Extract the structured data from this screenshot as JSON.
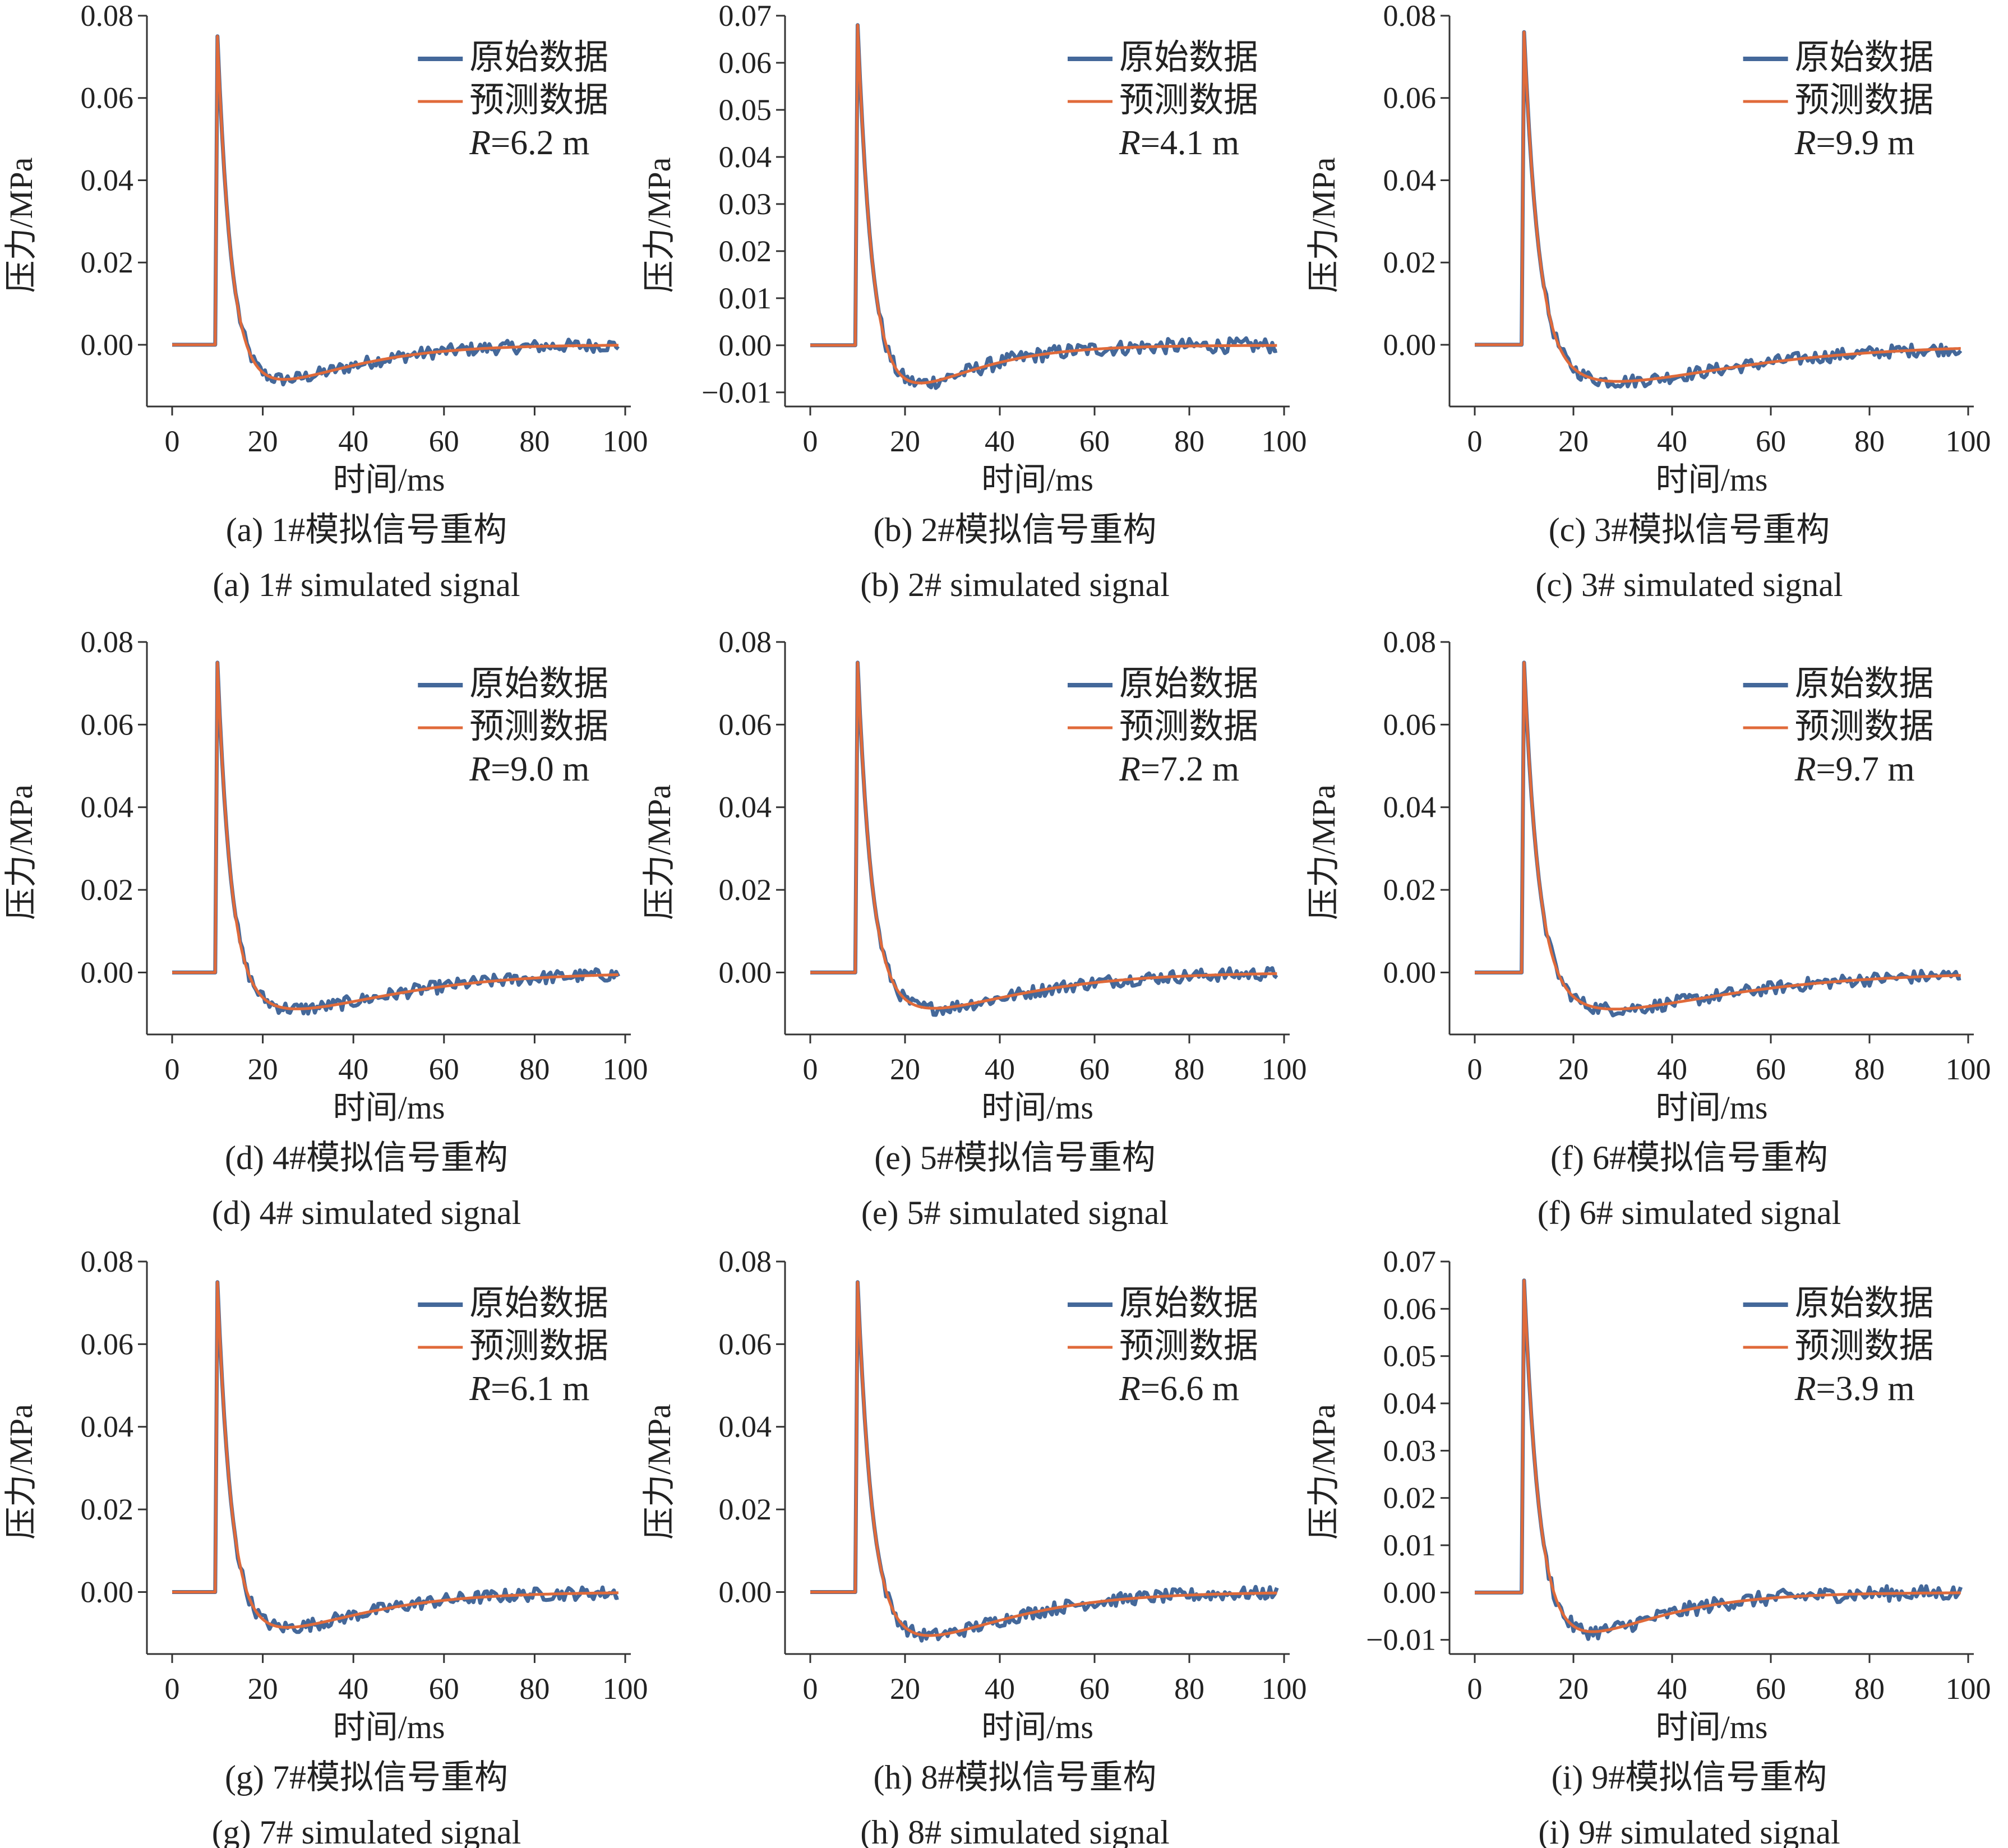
{
  "colors": {
    "original": "#44689A",
    "predicted": "#E06A3A",
    "axis": "#333333"
  },
  "chart_data": [
    {
      "type": "line",
      "xlabel": "时间/ms",
      "ylabel": "压力/MPa",
      "xlim": [
        0,
        100
      ],
      "ylim": [
        -0.015,
        0.08
      ],
      "x_ticks": [
        "0",
        "20",
        "40",
        "60",
        "80",
        "100"
      ],
      "y_ticks": [
        "0.00",
        "0.02",
        "0.04",
        "0.06",
        "0.08"
      ],
      "series": [
        {
          "name": "原始数据"
        },
        {
          "name": "预测数据"
        }
      ],
      "annotation": "=6.2 m",
      "r_symbol": "R",
      "peak": 0.075,
      "neg_min": -0.009,
      "neg_time": 22,
      "caption_cn": "(a) 1#模拟信号重构",
      "caption_en": "(a) 1# simulated signal"
    },
    {
      "type": "line",
      "xlabel": "时间/ms",
      "ylabel": "压力/MPa",
      "xlim": [
        0,
        100
      ],
      "ylim": [
        -0.013,
        0.07
      ],
      "x_ticks": [
        "0",
        "20",
        "40",
        "60",
        "80",
        "100"
      ],
      "y_ticks": [
        "−0.01",
        "0.00",
        "0.01",
        "0.02",
        "0.03",
        "0.04",
        "0.05",
        "0.06",
        "0.07"
      ],
      "series": [
        {
          "name": "原始数据"
        },
        {
          "name": "预测数据"
        }
      ],
      "annotation": "=4.1 m",
      "r_symbol": "R",
      "peak": 0.068,
      "neg_min": -0.009,
      "neg_time": 20,
      "caption_cn": "(b) 2#模拟信号重构",
      "caption_en": "(b) 2# simulated signal"
    },
    {
      "type": "line",
      "xlabel": "时间/ms",
      "ylabel": "压力/MPa",
      "xlim": [
        0,
        100
      ],
      "ylim": [
        -0.015,
        0.08
      ],
      "x_ticks": [
        "0",
        "20",
        "40",
        "60",
        "80",
        "100"
      ],
      "y_ticks": [
        "0.00",
        "0.02",
        "0.04",
        "0.06",
        "0.08"
      ],
      "series": [
        {
          "name": "原始数据"
        },
        {
          "name": "预测数据"
        }
      ],
      "annotation": "=9.9 m",
      "r_symbol": "R",
      "peak": 0.076,
      "neg_min": -0.009,
      "neg_time": 28,
      "caption_cn": "(c) 3#模拟信号重构",
      "caption_en": "(c) 3# simulated signal"
    },
    {
      "type": "line",
      "xlabel": "时间/ms",
      "ylabel": "压力/MPa",
      "xlim": [
        0,
        100
      ],
      "ylim": [
        -0.015,
        0.08
      ],
      "x_ticks": [
        "0",
        "20",
        "40",
        "60",
        "80",
        "100"
      ],
      "y_ticks": [
        "0.00",
        "0.02",
        "0.04",
        "0.06",
        "0.08"
      ],
      "series": [
        {
          "name": "原始数据"
        },
        {
          "name": "预测数据"
        }
      ],
      "annotation": "=9.0 m",
      "r_symbol": "R",
      "peak": 0.075,
      "neg_min": -0.009,
      "neg_time": 26,
      "caption_cn": "(d) 4#模拟信号重构",
      "caption_en": "(d) 4# simulated signal"
    },
    {
      "type": "line",
      "xlabel": "时间/ms",
      "ylabel": "压力/MPa",
      "xlim": [
        0,
        100
      ],
      "ylim": [
        -0.015,
        0.08
      ],
      "x_ticks": [
        "0",
        "20",
        "40",
        "60",
        "80",
        "100"
      ],
      "y_ticks": [
        "0.00",
        "0.02",
        "0.04",
        "0.06",
        "0.08"
      ],
      "series": [
        {
          "name": "原始数据"
        },
        {
          "name": "预测数据"
        }
      ],
      "annotation": "=7.2 m",
      "r_symbol": "R",
      "peak": 0.075,
      "neg_min": -0.009,
      "neg_time": 24,
      "caption_cn": "(e) 5#模拟信号重构",
      "caption_en": "(e) 5# simulated signal"
    },
    {
      "type": "line",
      "xlabel": "时间/ms",
      "ylabel": "压力/MPa",
      "xlim": [
        0,
        100
      ],
      "ylim": [
        -0.015,
        0.08
      ],
      "x_ticks": [
        "0",
        "20",
        "40",
        "60",
        "80",
        "100"
      ],
      "y_ticks": [
        "0.00",
        "0.02",
        "0.04",
        "0.06",
        "0.08"
      ],
      "series": [
        {
          "name": "原始数据"
        },
        {
          "name": "预测数据"
        }
      ],
      "annotation": "=9.7 m",
      "r_symbol": "R",
      "peak": 0.075,
      "neg_min": -0.009,
      "neg_time": 27,
      "caption_cn": "(f) 6#模拟信号重构",
      "caption_en": "(f) 6# simulated signal"
    },
    {
      "type": "line",
      "xlabel": "时间/ms",
      "ylabel": "压力/MPa",
      "xlim": [
        0,
        100
      ],
      "ylim": [
        -0.015,
        0.08
      ],
      "x_ticks": [
        "0",
        "20",
        "40",
        "60",
        "80",
        "100"
      ],
      "y_ticks": [
        "0.00",
        "0.02",
        "0.04",
        "0.06",
        "0.08"
      ],
      "series": [
        {
          "name": "原始数据"
        },
        {
          "name": "预测数据"
        }
      ],
      "annotation": "=6.1 m",
      "r_symbol": "R",
      "peak": 0.075,
      "neg_min": -0.009,
      "neg_time": 23,
      "caption_cn": "(g) 7#模拟信号重构",
      "caption_en": "(g) 7# simulated signal"
    },
    {
      "type": "line",
      "xlabel": "时间/ms",
      "ylabel": "压力/MPa",
      "xlim": [
        0,
        100
      ],
      "ylim": [
        -0.015,
        0.08
      ],
      "x_ticks": [
        "0",
        "20",
        "40",
        "60",
        "80",
        "100"
      ],
      "y_ticks": [
        "0.00",
        "0.02",
        "0.04",
        "0.06",
        "0.08"
      ],
      "series": [
        {
          "name": "原始数据"
        },
        {
          "name": "预测数据"
        }
      ],
      "annotation": "=6.6 m",
      "r_symbol": "R",
      "peak": 0.075,
      "neg_min": -0.011,
      "neg_time": 23,
      "caption_cn": "(h) 8#模拟信号重构",
      "caption_en": "(h) 8# simulated signal"
    },
    {
      "type": "line",
      "xlabel": "时间/ms",
      "ylabel": "压力/MPa",
      "xlim": [
        0,
        100
      ],
      "ylim": [
        -0.013,
        0.07
      ],
      "x_ticks": [
        "0",
        "20",
        "40",
        "60",
        "80",
        "100"
      ],
      "y_ticks": [
        "−0.01",
        "0.00",
        "0.01",
        "0.02",
        "0.03",
        "0.04",
        "0.05",
        "0.06",
        "0.07"
      ],
      "series": [
        {
          "name": "原始数据"
        },
        {
          "name": "预测数据"
        }
      ],
      "annotation": "=3.9 m",
      "r_symbol": "R",
      "peak": 0.066,
      "neg_min": -0.009,
      "neg_time": 21,
      "caption_cn": "(i) 9#模拟信号重构",
      "caption_en": "(i) 9# simulated signal"
    }
  ]
}
